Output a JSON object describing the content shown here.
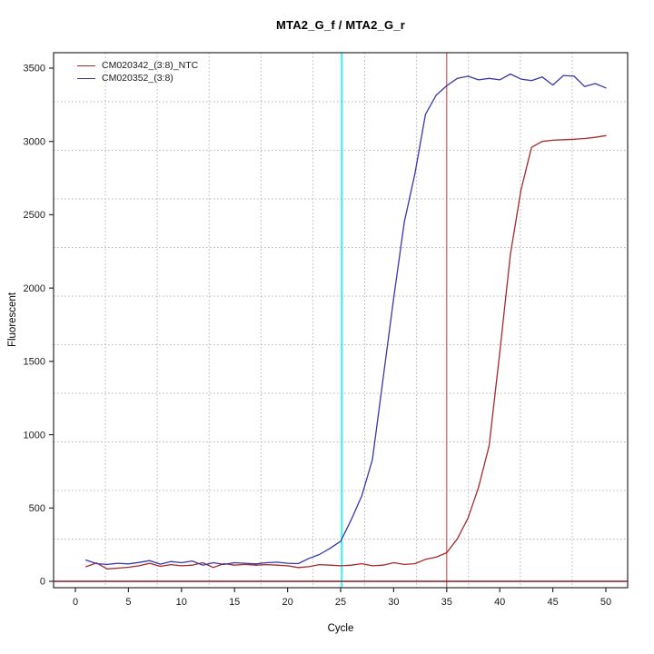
{
  "chart_data": {
    "type": "line",
    "title": "MTA2_G_f / MTA2_G_r",
    "xlabel": "Cycle",
    "ylabel": "Fluorescent",
    "x_ticks": [
      0,
      5,
      10,
      15,
      20,
      25,
      30,
      35,
      40,
      45,
      50
    ],
    "y_ticks": [
      0,
      500,
      1000,
      1500,
      2000,
      2500,
      3000,
      3500
    ],
    "xlim": [
      -2,
      52
    ],
    "ylim": [
      -45,
      3605
    ],
    "grid": {
      "on": true,
      "style": "dotted",
      "nx": 11,
      "ny": 11,
      "color": "#b5b5b5"
    },
    "legend_position": "top-left",
    "x": [
      1,
      2,
      3,
      4,
      5,
      6,
      7,
      8,
      9,
      10,
      11,
      12,
      13,
      14,
      15,
      16,
      17,
      18,
      19,
      20,
      21,
      22,
      23,
      24,
      25,
      26,
      27,
      28,
      29,
      30,
      31,
      32,
      33,
      34,
      35,
      36,
      37,
      38,
      39,
      40,
      41,
      42,
      43,
      44,
      45,
      46,
      47,
      48,
      49,
      50
    ],
    "series": [
      {
        "name": "CM020342_(3:8)_NTC",
        "color": "#A52A2A",
        "values": [
          100,
          125,
          85,
          90,
          96,
          106,
          123,
          102,
          114,
          106,
          110,
          127,
          94,
          121,
          110,
          115,
          110,
          114,
          110,
          106,
          94,
          100,
          114,
          110,
          106,
          110,
          120,
          106,
          110,
          127,
          115,
          120,
          150,
          165,
          195,
          290,
          430,
          640,
          925,
          1560,
          2230,
          2670,
          2960,
          3000,
          3008,
          3012,
          3015,
          3020,
          3028,
          3040
        ]
      },
      {
        "name": "CM020352_(3:8)",
        "color": "#3838A8",
        "values": [
          145,
          121,
          115,
          123,
          119,
          129,
          141,
          117,
          135,
          127,
          139,
          110,
          127,
          115,
          127,
          123,
          119,
          127,
          131,
          123,
          121,
          156,
          183,
          225,
          273,
          420,
          585,
          830,
          1380,
          1930,
          2450,
          2780,
          3185,
          3315,
          3380,
          3430,
          3445,
          3420,
          3430,
          3420,
          3460,
          3425,
          3415,
          3440,
          3385,
          3450,
          3445,
          3375,
          3395,
          3365
        ]
      }
    ],
    "markers": {
      "threshold_hline": {
        "y": 0,
        "color": "#8B1A1A"
      },
      "vline_cyan": {
        "x": 25.1,
        "color": "#00FFFF"
      },
      "vline_red": {
        "x": 35,
        "color": "#C95C5C"
      }
    },
    "axis_color": "#2a2a2a",
    "tick_label_color": "#1a1a1a"
  }
}
